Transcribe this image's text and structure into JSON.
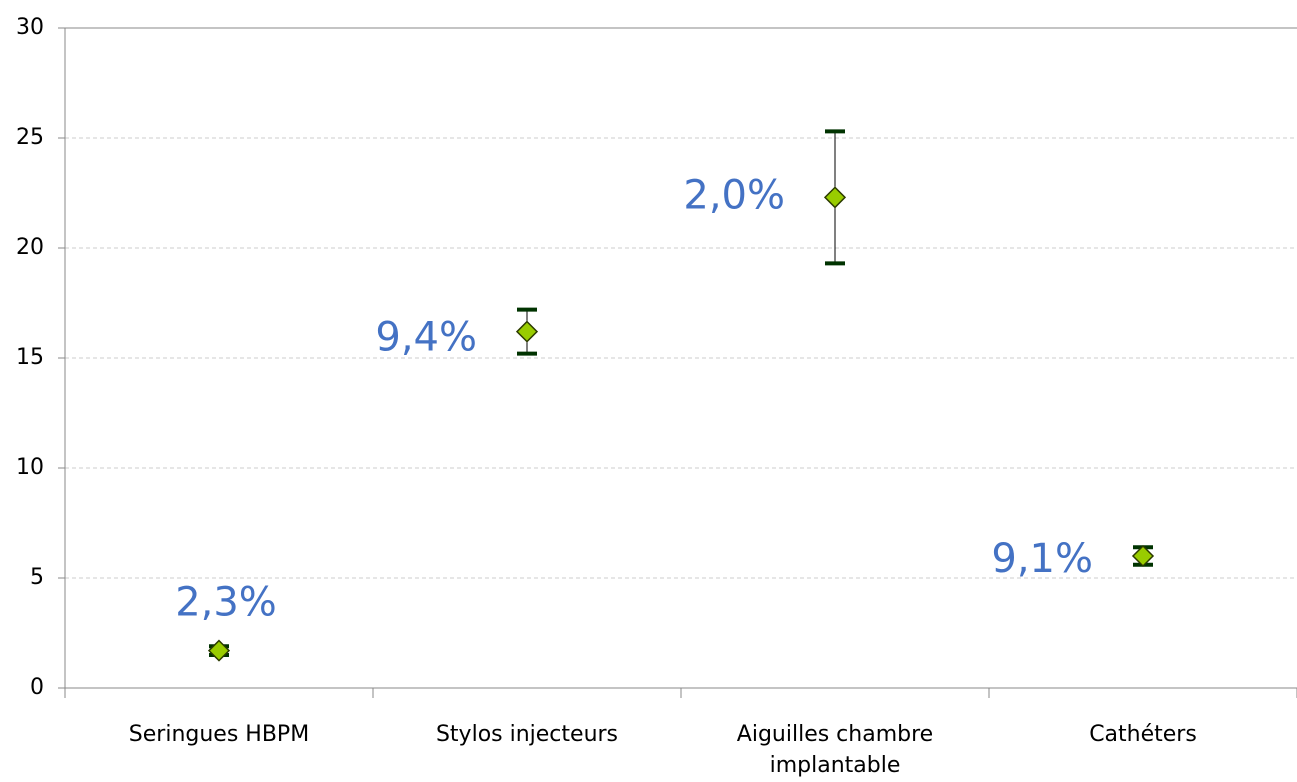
{
  "chart_data": {
    "type": "errorbar",
    "categories": [
      "Seringues HBPM",
      "Stylos injecteurs",
      "Aiguilles chambre implantable",
      "Cathéters"
    ],
    "series": [
      {
        "color": "#99cc00",
        "values": [
          1.7,
          16.2,
          22.3,
          6.0
        ],
        "errors": [
          0.2,
          1.0,
          3.0,
          0.4
        ]
      }
    ],
    "annotations": [
      "2,3%",
      "9,4%",
      "2,0%",
      "9,1%"
    ],
    "ylim": [
      0,
      30
    ],
    "yticks": [
      0,
      5,
      10,
      15,
      20,
      25,
      30
    ],
    "grid": true
  }
}
